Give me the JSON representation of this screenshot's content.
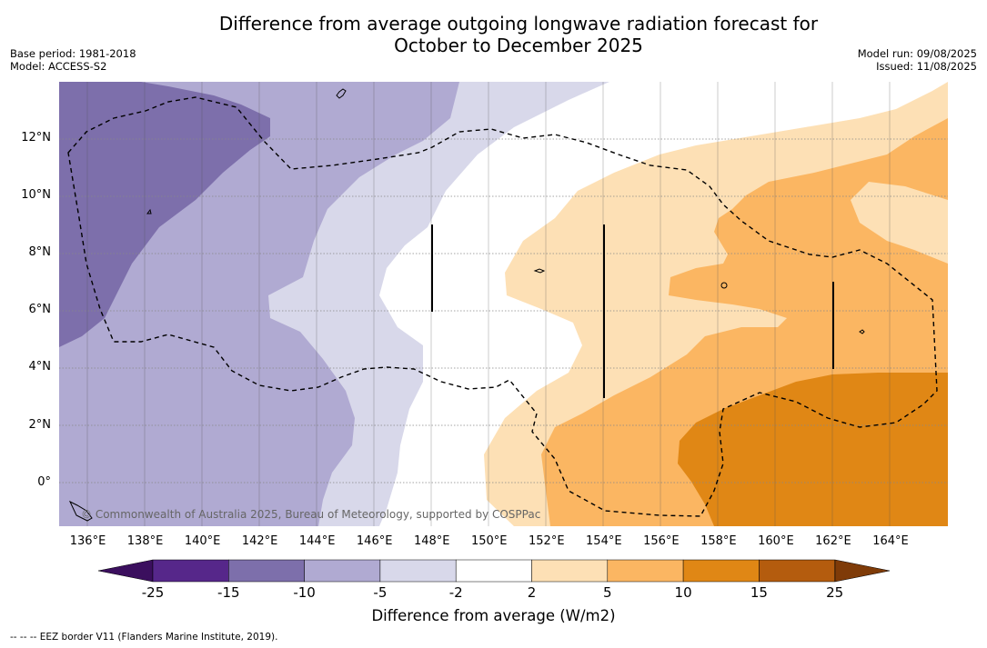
{
  "title": {
    "line1": "Difference from average outgoing longwave radiation forecast for",
    "line2": "October to December 2025"
  },
  "meta_left": {
    "base_period": "Base period: 1981-2018",
    "model": "Model: ACCESS-S2"
  },
  "meta_right": {
    "model_run": "Model run: 09/08/2025",
    "issued": "Issued: 11/08/2025"
  },
  "map": {
    "lon_range": [
      135,
      166
    ],
    "lat_range": [
      -1.5,
      14
    ],
    "lat_labels": [
      "12°N",
      "10°N",
      "8°N",
      "6°N",
      "4°N",
      "2°N",
      "0°"
    ],
    "lat_values": [
      12,
      10,
      8,
      6,
      4,
      2,
      0
    ],
    "lon_labels": [
      "136°E",
      "138°E",
      "140°E",
      "142°E",
      "144°E",
      "146°E",
      "148°E",
      "150°E",
      "152°E",
      "154°E",
      "156°E",
      "158°E",
      "160°E",
      "162°E",
      "164°E"
    ],
    "lon_values": [
      136,
      138,
      140,
      142,
      144,
      146,
      148,
      150,
      152,
      154,
      156,
      158,
      160,
      162,
      164
    ],
    "copyright": "© Commonwealth of Australia 2025, Bureau of Meteorology, supported by COSPPac"
  },
  "colorbar": {
    "ticks": [
      "-25",
      "-15",
      "-10",
      "-5",
      "-2",
      "2",
      "5",
      "10",
      "15",
      "25"
    ],
    "colors": [
      "#56278a",
      "#7d6fab",
      "#b0aad2",
      "#d8d8ea",
      "#ffffff",
      "#fde0b5",
      "#fbb662",
      "#e08715",
      "#b45c0e"
    ],
    "extend_low_color": "#3b0f5e",
    "extend_high_color": "#7f3b08",
    "title": "Difference from average (W/m2)"
  },
  "footnote": "--  --  -- EEZ border V11 (Flanders Marine Institute, 2019)."
}
